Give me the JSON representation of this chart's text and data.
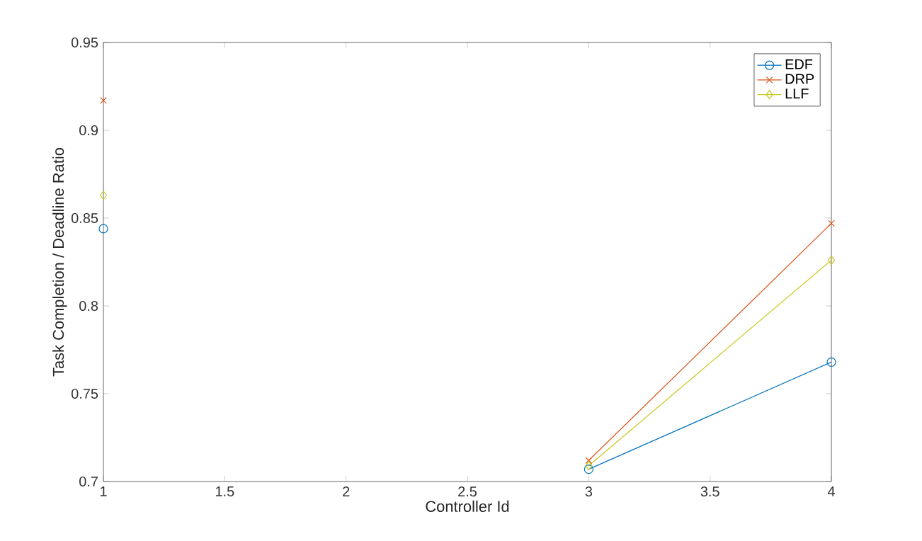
{
  "chart_data": {
    "type": "line",
    "xlabel": "Controller Id",
    "ylabel": "Task Completion / Deadline Ratio",
    "x": [
      1,
      2,
      3,
      4
    ],
    "series": [
      {
        "name": "EDF",
        "color": "#0072bd",
        "marker": "circle",
        "values": [
          0.844,
          null,
          0.707,
          0.768
        ]
      },
      {
        "name": "DRP",
        "color": "#d95319",
        "marker": "cross",
        "values": [
          0.917,
          null,
          0.712,
          0.847
        ]
      },
      {
        "name": "LLF",
        "color": "#c8c81e",
        "marker": "diamond",
        "values": [
          0.863,
          null,
          0.709,
          0.826
        ]
      }
    ],
    "xlim": [
      1,
      4
    ],
    "xticks": [
      1,
      1.5,
      2,
      2.5,
      3,
      3.5,
      4
    ],
    "ylim": [
      0.7,
      0.95
    ],
    "yticks": [
      0.7,
      0.75,
      0.8,
      0.85,
      0.9,
      0.95
    ],
    "grid": false,
    "legend": "top right",
    "line_style": "solid"
  }
}
